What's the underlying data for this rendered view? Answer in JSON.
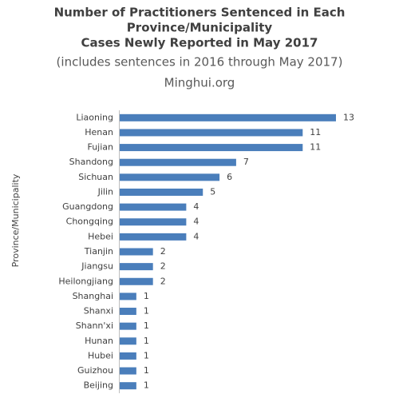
{
  "chart_data": {
    "type": "bar",
    "orientation": "horizontal",
    "title": [
      "Number of Practitioners  Sentenced in Each",
      "Province/Municipality",
      "Cases Newly  Reported in  May 2017"
    ],
    "subtitle": "(includes sentences in 2016 through May 2017)",
    "source": "Minghui.org",
    "y_label": "Province/Municipality",
    "categories": [
      "Liaoning",
      "Henan",
      "Fujian",
      "Shandong",
      "Sichuan",
      "Jilin",
      "Guangdong",
      "Chongqing",
      "Hebei",
      "Tianjin",
      "Jiangsu",
      "Heilongjiang",
      "Shanghai",
      "Shanxi",
      "Shann'xi",
      "Hunan",
      "Hubei",
      "Guizhou",
      "Beijing"
    ],
    "values": [
      13,
      11,
      11,
      7,
      6,
      5,
      4,
      4,
      4,
      2,
      2,
      2,
      1,
      1,
      1,
      1,
      1,
      1,
      1
    ],
    "color": "#4a7ebb"
  }
}
